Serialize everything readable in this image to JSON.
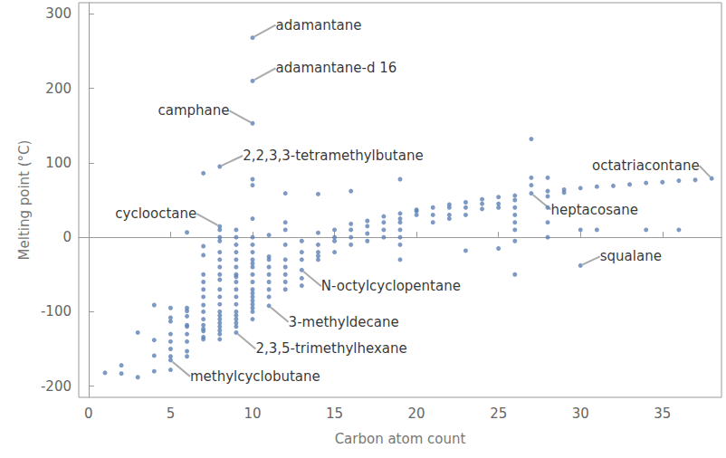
{
  "chart_data": {
    "type": "scatter",
    "x_label": "Carbon atom count",
    "y_label": "Melting point (°C)",
    "color": "#5e81b5",
    "marker": "circle",
    "grid": false,
    "xlim": [
      -0.6,
      38.6
    ],
    "xticks": [
      0,
      5,
      10,
      15,
      20,
      25,
      30,
      35
    ],
    "ylim": [
      -215,
      315
    ],
    "yticks": [
      -200,
      -100,
      0,
      100,
      200,
      300
    ],
    "x": [
      1,
      2,
      2,
      3,
      3,
      4,
      4,
      4,
      4,
      5,
      5,
      5,
      5,
      5,
      5,
      5,
      5,
      6,
      6,
      6,
      6,
      6,
      6,
      6,
      6,
      6,
      6,
      7,
      7,
      7,
      7,
      7,
      7,
      7,
      7,
      7,
      7,
      7,
      7,
      7,
      7,
      7,
      8,
      8,
      8,
      8,
      8,
      8,
      8,
      8,
      8,
      8,
      8,
      8,
      8,
      8,
      8,
      8,
      8,
      8,
      8,
      9,
      9,
      9,
      9,
      9,
      9,
      9,
      9,
      9,
      9,
      9,
      9,
      9,
      9,
      9,
      9,
      9,
      10,
      10,
      10,
      10,
      10,
      10,
      10,
      10,
      10,
      10,
      10,
      10,
      10,
      10,
      10,
      10,
      10,
      10,
      10,
      11,
      11,
      11,
      11,
      11,
      11,
      11,
      11,
      12,
      12,
      12,
      12,
      12,
      12,
      12,
      12,
      12,
      13,
      13,
      13,
      13,
      13,
      14,
      14,
      14,
      14,
      14,
      14,
      15,
      15,
      15,
      15,
      16,
      16,
      16,
      16,
      16,
      17,
      17,
      17,
      17,
      18,
      18,
      18,
      18,
      19,
      19,
      19,
      19,
      19,
      19,
      19,
      19,
      20,
      20,
      20,
      21,
      21,
      21,
      22,
      22,
      22,
      22,
      23,
      23,
      23,
      23,
      24,
      24,
      24,
      25,
      25,
      25,
      25,
      26,
      26,
      26,
      26,
      26,
      26,
      26,
      26,
      27,
      27,
      27,
      28,
      28,
      28,
      28,
      28,
      28,
      29,
      29,
      30,
      30,
      31,
      31,
      32,
      33,
      34,
      34,
      35,
      36,
      36,
      37
    ],
    "values": [
      -182,
      -183,
      -172,
      -188,
      -128,
      -91,
      -138,
      -159,
      -180,
      -95,
      -108,
      -113,
      -130,
      -140,
      -150,
      -160,
      -178,
      6.5,
      -95,
      -99,
      -106,
      -118,
      -120,
      -130,
      -140,
      -153,
      -160,
      86,
      -12,
      -24,
      -50,
      -60,
      -70,
      -80,
      -91,
      -100,
      -110,
      -118,
      -123,
      -126,
      -134,
      -137,
      10,
      0,
      -5,
      -20,
      -30,
      -40,
      -50,
      -57,
      -70,
      -80,
      -90,
      -100,
      -105,
      -110,
      -115,
      -120,
      -125,
      -130,
      -137,
      10,
      0,
      -10,
      -20,
      -30,
      -40,
      -50,
      -53,
      -60,
      -70,
      -80,
      -90,
      -100,
      -105,
      -110,
      -115,
      -120,
      78,
      70,
      25,
      0,
      -10,
      -20,
      -30,
      -35,
      -40,
      -50,
      -60,
      -70,
      -75,
      -80,
      -85,
      -90,
      -95,
      -100,
      -110,
      3,
      -26,
      -30,
      -40,
      -50,
      -60,
      -70,
      -80,
      59,
      20,
      10,
      -10,
      -30,
      -40,
      -50,
      -60,
      -70,
      -5,
      -20,
      -30,
      -55,
      -65,
      58,
      6,
      -10,
      -20,
      -25,
      -30,
      10,
      0,
      -5,
      -20,
      62,
      18,
      10,
      0,
      -10,
      22,
      15,
      5,
      -5,
      28,
      20,
      10,
      0,
      78,
      32,
      25,
      20,
      10,
      0,
      -10,
      -30,
      37,
      35,
      30,
      40,
      30,
      20,
      44,
      40,
      30,
      25,
      47,
      40,
      30,
      -18,
      51,
      45,
      38,
      54,
      45,
      40,
      -15,
      56,
      50,
      40,
      30,
      20,
      10,
      -5,
      -50,
      132,
      80,
      70,
      80,
      62,
      55,
      40,
      20,
      0,
      64,
      60,
      66,
      10,
      68,
      10,
      69,
      71,
      73,
      10,
      74,
      76,
      10,
      77
    ],
    "annotations": [
      {
        "text": "adamantane",
        "x": 10,
        "y": 268
      },
      {
        "text": "adamantane-d 16",
        "x": 10,
        "y": 210
      },
      {
        "text": "camphane",
        "x": 10,
        "y": 153
      },
      {
        "text": "2,2,3,3-tetramethylbutane",
        "x": 8,
        "y": 95
      },
      {
        "text": "cyclooctane",
        "x": 8,
        "y": 14.6
      },
      {
        "text": "octatriacontane",
        "x": 38,
        "y": 79
      },
      {
        "text": "heptacosane",
        "x": 27,
        "y": 59
      },
      {
        "text": "squalane",
        "x": 30,
        "y": -38
      },
      {
        "text": "N-octylcyclopentane",
        "x": 13,
        "y": -44
      },
      {
        "text": "3-methyldecane",
        "x": 11,
        "y": -92
      },
      {
        "text": "2,3,5-trimethylhexane",
        "x": 9,
        "y": -128
      },
      {
        "text": "methylcyclobutane",
        "x": 5,
        "y": -165
      }
    ]
  }
}
